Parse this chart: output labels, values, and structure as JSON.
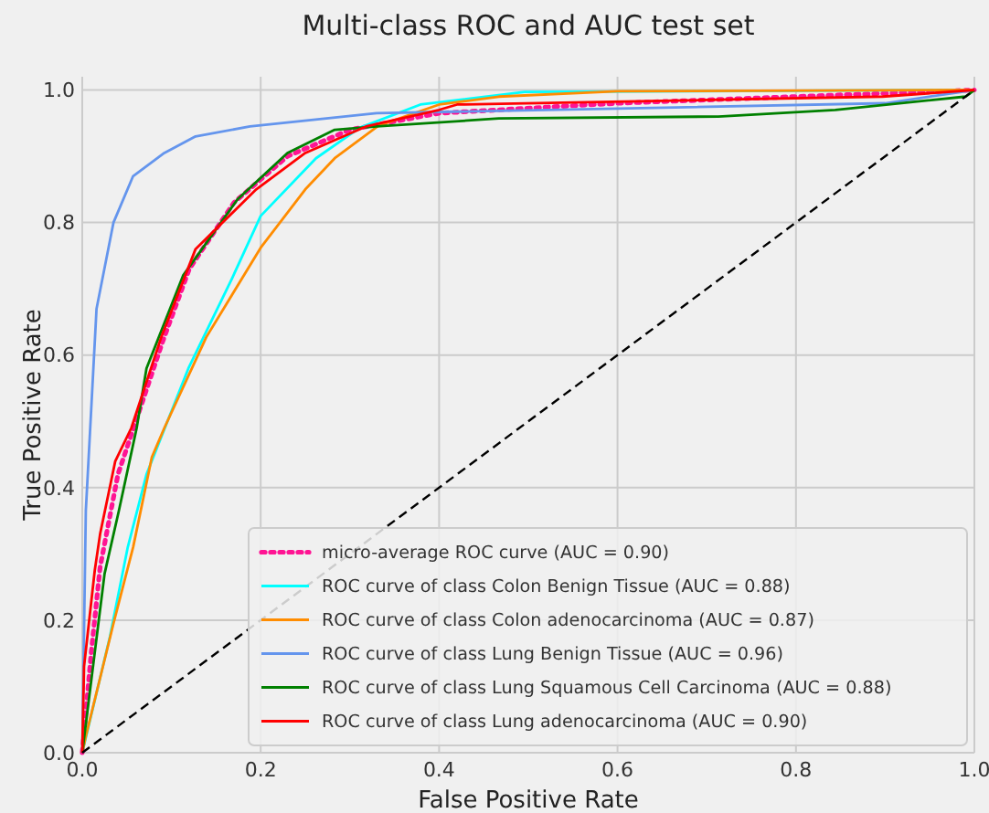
{
  "chart_data": {
    "type": "line",
    "title": "Multi-class ROC and AUC test set",
    "xlabel": "False Positive Rate",
    "ylabel": "True Positive Rate",
    "xlim": [
      0,
      1
    ],
    "ylim": [
      0,
      1.02
    ],
    "xticks": [
      {
        "value": 0,
        "label": "0.0"
      },
      0.2,
      0.4,
      0.6,
      0.8,
      {
        "value": 1,
        "label": "1.0"
      }
    ],
    "yticks": [
      {
        "value": 0,
        "label": "0.0"
      },
      0.2,
      0.4,
      0.6,
      0.8,
      {
        "value": 1,
        "label": "1.0"
      }
    ],
    "grid": true,
    "legend": "bottom right",
    "marker": "none",
    "series": [
      {
        "name": "micro-average ROC curve (AUC = 0.90)",
        "color": "#ff1493",
        "line_style": "dotted",
        "x": [
          0,
          0.01,
          0.02,
          0.04,
          0.06,
          0.09,
          0.12,
          0.17,
          0.23,
          0.3,
          0.4,
          0.6,
          1
        ],
        "values": [
          0,
          0.15,
          0.28,
          0.42,
          0.5,
          0.62,
          0.73,
          0.83,
          0.9,
          0.94,
          0.965,
          0.98,
          1
        ]
      },
      {
        "name": "ROC curve of class Colon Benign Tissue (AUC = 0.88)",
        "color": "#00ffff",
        "line_style": "solid",
        "x": [
          0,
          0.031,
          0.051,
          0.072,
          0.119,
          0.168,
          0.2,
          0.262,
          0.311,
          0.379,
          0.496,
          1
        ],
        "values": [
          0,
          0.175,
          0.31,
          0.42,
          0.58,
          0.716,
          0.81,
          0.897,
          0.943,
          0.978,
          0.997,
          1
        ]
      },
      {
        "name": "ROC curve of class Colon adenocarcinoma (AUC = 0.87)",
        "color": "#ff8c00",
        "line_style": "solid",
        "x": [
          0,
          0.004,
          0.035,
          0.057,
          0.078,
          0.092,
          0.139,
          0.2,
          0.25,
          0.283,
          0.332,
          0.4,
          0.467,
          0.6,
          1
        ],
        "values": [
          0,
          0.025,
          0.195,
          0.31,
          0.446,
          0.49,
          0.627,
          0.762,
          0.85,
          0.897,
          0.946,
          0.978,
          0.99,
          0.998,
          1
        ]
      },
      {
        "name": "ROC curve of class Lung Benign Tissue (AUC = 0.96)",
        "color": "#6495ed",
        "line_style": "solid",
        "x": [
          0,
          0.004,
          0.016,
          0.035,
          0.057,
          0.092,
          0.127,
          0.188,
          0.33,
          0.6,
          0.9,
          1
        ],
        "values": [
          0,
          0.365,
          0.67,
          0.8,
          0.87,
          0.905,
          0.93,
          0.945,
          0.965,
          0.972,
          0.98,
          1
        ]
      },
      {
        "name": "ROC curve of class Lung Squamous Cell Carcinoma (AUC = 0.88)",
        "color": "#008000",
        "line_style": "solid",
        "x": [
          0,
          0.025,
          0.041,
          0.061,
          0.072,
          0.113,
          0.174,
          0.23,
          0.283,
          0.33,
          0.467,
          0.713,
          0.844,
          0.99,
          1
        ],
        "values": [
          0,
          0.27,
          0.365,
          0.49,
          0.58,
          0.72,
          0.835,
          0.905,
          0.94,
          0.945,
          0.957,
          0.96,
          0.97,
          0.99,
          1
        ]
      },
      {
        "name": "ROC curve of class Lung adenocarcinoma (AUC = 0.90)",
        "color": "#ff0000",
        "line_style": "solid",
        "x": [
          0,
          0.002,
          0.014,
          0.02,
          0.037,
          0.055,
          0.088,
          0.127,
          0.195,
          0.25,
          0.318,
          0.4,
          0.42,
          0.897,
          1
        ],
        "values": [
          0,
          0.13,
          0.275,
          0.33,
          0.44,
          0.49,
          0.625,
          0.76,
          0.85,
          0.905,
          0.945,
          0.97,
          0.978,
          0.99,
          1
        ]
      },
      {
        "color": "#000000",
        "line_style": "dashed",
        "x": [
          0,
          1
        ],
        "values": [
          0,
          1
        ]
      }
    ]
  }
}
